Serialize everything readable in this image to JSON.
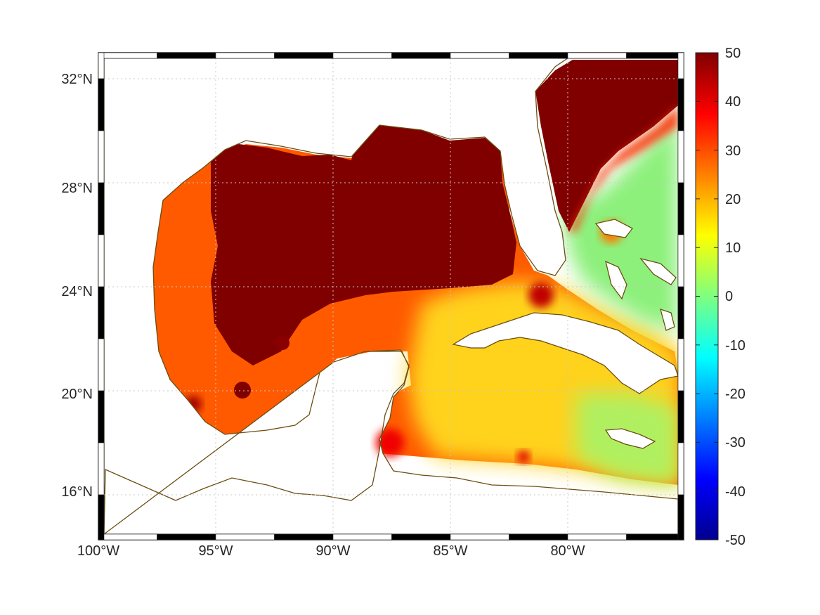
{
  "map": {
    "lon_labels": [
      "100°W",
      "95°W",
      "90°W",
      "85°W",
      "80°W"
    ],
    "lat_labels": [
      "32°N",
      "28°N",
      "24°N",
      "20°N",
      "16°N"
    ],
    "lon_ticks_deg": [
      -100,
      -95,
      -90,
      -85,
      -80
    ],
    "lat_ticks_deg": [
      32,
      28,
      24,
      20,
      16
    ],
    "extent": {
      "lon_min": -100,
      "lon_max": -75,
      "lat_min": 14.5,
      "lat_max": 33
    },
    "grid": true,
    "coastline_color": "#6b4e12",
    "land_color": "#ffffff"
  },
  "colorbar": {
    "colormap": "jet",
    "min": -50,
    "max": 50,
    "tick_labels": [
      "50",
      "40",
      "30",
      "20",
      "10",
      "0",
      "-10",
      "-20",
      "-30",
      "-40",
      "-50"
    ],
    "tick_values": [
      50,
      40,
      30,
      20,
      10,
      0,
      -10,
      -20,
      -30,
      -40,
      -50
    ]
  }
}
